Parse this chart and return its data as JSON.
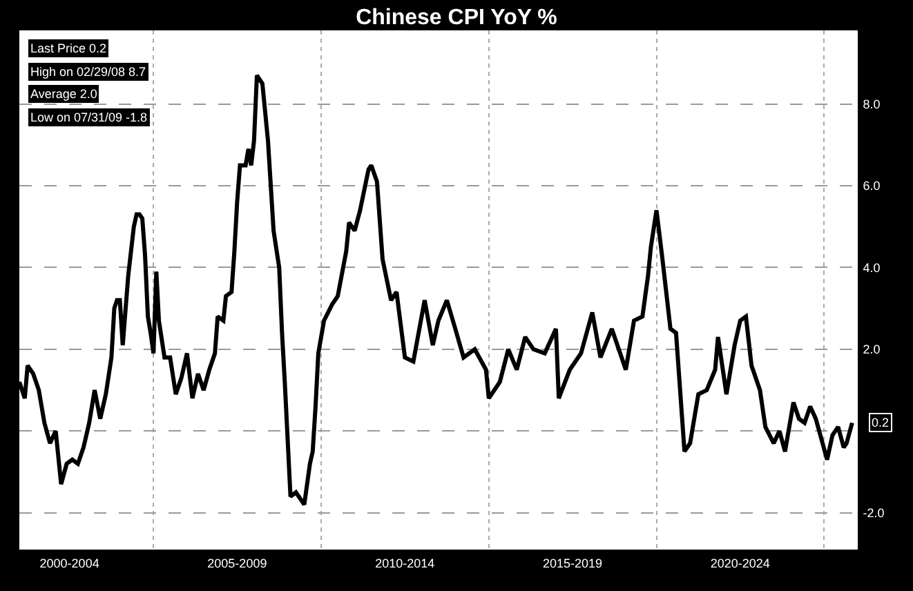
{
  "chart_data": {
    "type": "line",
    "title": "Chinese CPI YoY %",
    "x": [
      "2001-01",
      "2001-03",
      "2001-04",
      "2001-06",
      "2001-08",
      "2001-10",
      "2001-12",
      "2002-02",
      "2002-04",
      "2002-06",
      "2002-08",
      "2002-10",
      "2002-12",
      "2003-02",
      "2003-04",
      "2003-06",
      "2003-08",
      "2003-10",
      "2003-11",
      "2003-12",
      "2004-01",
      "2004-02",
      "2004-04",
      "2004-06",
      "2004-07",
      "2004-08",
      "2004-09",
      "2004-10",
      "2004-11",
      "2004-12",
      "2005-01",
      "2005-02",
      "2005-03",
      "2005-05",
      "2005-07",
      "2005-09",
      "2005-11",
      "2006-01",
      "2006-03",
      "2006-05",
      "2006-07",
      "2006-09",
      "2006-11",
      "2006-12",
      "2007-02",
      "2007-03",
      "2007-05",
      "2007-06",
      "2007-07",
      "2007-08",
      "2007-10",
      "2007-11",
      "2007-12",
      "2008-01",
      "2008-02",
      "2008-04",
      "2008-06",
      "2008-08",
      "2008-10",
      "2008-11",
      "2008-12",
      "2009-02",
      "2009-04",
      "2009-07",
      "2009-09",
      "2009-10",
      "2009-11",
      "2009-12",
      "2010-02",
      "2010-05",
      "2010-07",
      "2010-10",
      "2010-11",
      "2011-01",
      "2011-03",
      "2011-06",
      "2011-07",
      "2011-09",
      "2011-11",
      "2012-02",
      "2012-04",
      "2012-07",
      "2012-10",
      "2013-02",
      "2013-05",
      "2013-07",
      "2013-10",
      "2014-01",
      "2014-04",
      "2014-08",
      "2014-12",
      "2015-01",
      "2015-05",
      "2015-08",
      "2015-11",
      "2016-02",
      "2016-05",
      "2016-09",
      "2017-01",
      "2017-02",
      "2017-06",
      "2017-10",
      "2018-02",
      "2018-05",
      "2018-09",
      "2019-02",
      "2019-05",
      "2019-08",
      "2019-10",
      "2019-11",
      "2020-01",
      "2020-03",
      "2020-06",
      "2020-08",
      "2020-11",
      "2021-01",
      "2021-04",
      "2021-07",
      "2021-10",
      "2021-11",
      "2022-02",
      "2022-05",
      "2022-07",
      "2022-09",
      "2022-11",
      "2023-02",
      "2023-04",
      "2023-07",
      "2023-09",
      "2023-11",
      "2024-02",
      "2024-04",
      "2024-06",
      "2024-08",
      "2024-10",
      "2025-02",
      "2025-04",
      "2025-06",
      "2025-08",
      "2025-09",
      "2025-11"
    ],
    "series": [
      {
        "color": "#000000",
        "values": [
          1.2,
          0.8,
          1.6,
          1.4,
          1.0,
          0.2,
          -0.3,
          0.0,
          -1.3,
          -0.8,
          -0.7,
          -0.8,
          -0.4,
          0.2,
          1.0,
          0.3,
          0.9,
          1.8,
          3.0,
          3.2,
          3.2,
          2.1,
          3.8,
          5.0,
          5.3,
          5.3,
          5.2,
          4.3,
          2.8,
          2.4,
          1.9,
          3.9,
          2.7,
          1.8,
          1.8,
          0.9,
          1.3,
          1.9,
          0.8,
          1.4,
          1.0,
          1.5,
          1.9,
          2.8,
          2.7,
          3.3,
          3.4,
          4.4,
          5.6,
          6.5,
          6.5,
          6.9,
          6.5,
          7.1,
          8.7,
          8.5,
          7.1,
          4.9,
          4.0,
          2.4,
          1.2,
          -1.6,
          -1.5,
          -1.8,
          -0.8,
          -0.5,
          0.6,
          1.9,
          2.7,
          3.1,
          3.3,
          4.4,
          5.1,
          4.9,
          5.4,
          6.4,
          6.5,
          6.1,
          4.2,
          3.2,
          3.4,
          1.8,
          1.7,
          3.2,
          2.1,
          2.7,
          3.2,
          2.5,
          1.8,
          2.0,
          1.5,
          0.8,
          1.2,
          2.0,
          1.5,
          2.3,
          2.0,
          1.9,
          2.5,
          0.8,
          1.5,
          1.9,
          2.9,
          1.8,
          2.5,
          1.5,
          2.7,
          2.8,
          3.8,
          4.5,
          5.4,
          4.3,
          2.5,
          2.4,
          -0.5,
          -0.3,
          0.9,
          1.0,
          1.5,
          2.3,
          0.9,
          2.1,
          2.7,
          2.8,
          1.6,
          1.0,
          0.1,
          -0.3,
          0.0,
          -0.5,
          0.7,
          0.3,
          0.2,
          0.6,
          0.3,
          -0.7,
          -0.1,
          0.1,
          -0.4,
          -0.3,
          0.2
        ]
      }
    ],
    "xlim": [
      "2001-01",
      "2026-01"
    ],
    "xticks": [
      {
        "value": "2002-07",
        "label": "2000-2004"
      },
      {
        "value": "2005-01",
        "label": null
      },
      {
        "value": "2007-07",
        "label": "2005-2009"
      },
      {
        "value": "2010-01",
        "label": null
      },
      {
        "value": "2012-07",
        "label": "2010-2014"
      },
      {
        "value": "2015-01",
        "label": null
      },
      {
        "value": "2017-07",
        "label": "2015-2019"
      },
      {
        "value": "2020-01",
        "label": null
      },
      {
        "value": "2022-07",
        "label": "2020-2024"
      },
      {
        "value": "2025-01",
        "label": null
      }
    ],
    "ylim": [
      -2.9,
      9.8
    ],
    "yticks": [
      {
        "value": -2,
        "label": "-2.0"
      },
      {
        "value": 0,
        "label": null
      },
      {
        "value": 2,
        "label": "2.0"
      },
      {
        "value": 4,
        "label": "4.0"
      },
      {
        "value": 6,
        "label": "6.0"
      },
      {
        "value": 8,
        "label": "8.0"
      }
    ],
    "grid": true,
    "marker": "none",
    "line_style": "solid",
    "annotations": [
      {
        "text": "0.2",
        "x": "2025-11",
        "y": 0.2
      },
      "Last Price 0.2",
      "High on 02/29/08 8.7",
      "Average 2.0",
      "Low on 07/31/09 -1.8"
    ]
  }
}
